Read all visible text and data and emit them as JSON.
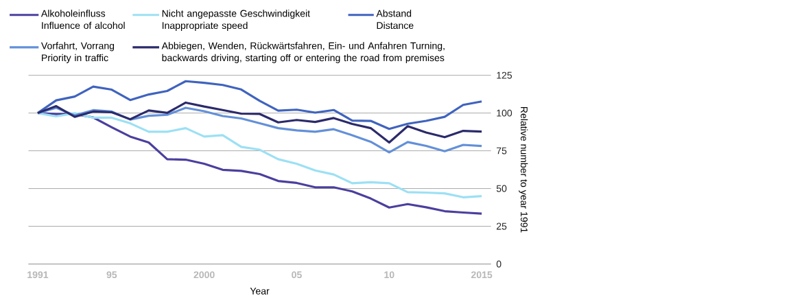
{
  "chart_data": {
    "type": "line",
    "xlabel": "Year",
    "ylabel": "Relative number to year 1991",
    "categories": [
      "1991",
      null,
      null,
      null,
      "95",
      null,
      null,
      null,
      null,
      "2000",
      null,
      null,
      null,
      null,
      "05",
      null,
      null,
      null,
      null,
      "10",
      null,
      null,
      null,
      null,
      "2015"
    ],
    "ylim": [
      0,
      125
    ],
    "yticks": [
      0,
      25,
      50,
      75,
      100,
      125
    ],
    "grid": "y",
    "legend": "top",
    "marker": "none",
    "line_style": "solid",
    "series": [
      {
        "name": "Alkoholeinfluss Influence of alcohol",
        "color": "#4b3f9e",
        "values": [
          100,
          99.3,
          99.3,
          97.1,
          90.6,
          84.4,
          80.5,
          69.4,
          69.1,
          66.4,
          62.4,
          61.7,
          59.6,
          55.0,
          53.7,
          50.8,
          50.8,
          48.1,
          43.4,
          37.4,
          39.7,
          37.6,
          35.0,
          34.1,
          33.4
        ]
      },
      {
        "name": "Nicht angepasste Geschwindigkeit Inappropriate speed",
        "color": "#9ce0f4",
        "values": [
          100,
          97.8,
          99.9,
          96.9,
          96.9,
          93.2,
          87.6,
          87.6,
          90.0,
          84.4,
          85.3,
          77.6,
          75.7,
          69.4,
          66.4,
          62.0,
          59.3,
          53.5,
          54.2,
          53.5,
          47.6,
          47.3,
          46.8,
          44.2,
          45.0
        ]
      },
      {
        "name": "Abstand Distance",
        "color": "#3f63be",
        "values": [
          100,
          108.4,
          110.9,
          117.5,
          115.5,
          108.6,
          112.3,
          114.6,
          121.1,
          120.0,
          118.6,
          115.6,
          108.1,
          101.6,
          102.2,
          100.3,
          102.0,
          95.0,
          94.8,
          89.5,
          92.9,
          94.8,
          97.5,
          105.4,
          107.7
        ]
      },
      {
        "name": "Vorfahrt, Vorrang Priority in traffic",
        "color": "#6390d8",
        "values": [
          100,
          103.5,
          98.5,
          101.9,
          101.0,
          95.7,
          98.2,
          98.8,
          103.5,
          101.2,
          98.0,
          96.4,
          93.2,
          90.0,
          88.5,
          87.6,
          89.3,
          85.3,
          81.0,
          74.0,
          80.8,
          78.2,
          74.7,
          78.9,
          78.2
        ]
      },
      {
        "name": "Abbiegen, Wenden, Rückwärtsfahren, Ein- und Anfahren Turning, backwards driving, starting off or entering the road from premises",
        "color": "#2b2a6b",
        "values": [
          100,
          104.6,
          97.5,
          101.0,
          100.5,
          95.9,
          101.7,
          100.1,
          106.9,
          104.3,
          102.0,
          99.6,
          99.4,
          93.8,
          95.4,
          94.1,
          96.7,
          92.8,
          90.0,
          80.5,
          91.3,
          87.1,
          84.0,
          88.2,
          87.7
        ]
      }
    ]
  }
}
